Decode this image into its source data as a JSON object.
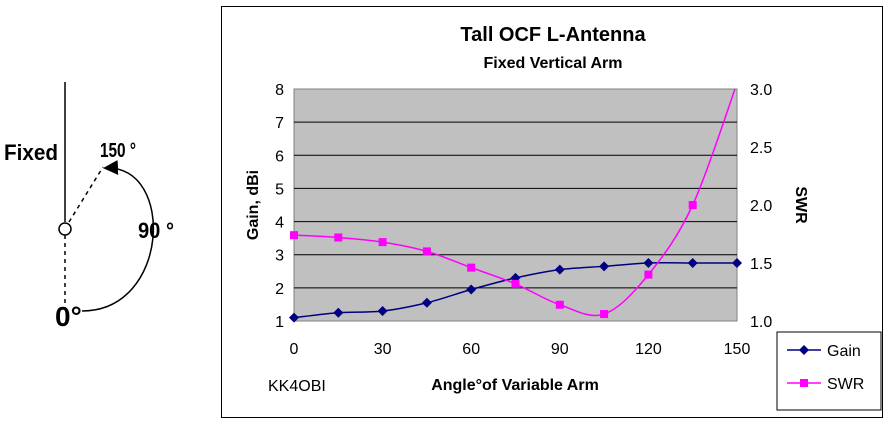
{
  "diagram": {
    "fixed_label": "Fixed",
    "angle_150_label": "150 °",
    "angle_90_label": "90 °",
    "angle_0_label": "0°"
  },
  "chart_data": {
    "type": "line",
    "title": "Tall OCF L-Antenna",
    "subtitle": "Fixed Vertical Arm",
    "xlabel": "Angle°of Variable Arm",
    "ylabel": "Gain, dBi",
    "y2label": "SWR",
    "xlim": [
      0,
      150
    ],
    "ylim": [
      1,
      8
    ],
    "y2lim": [
      1.0,
      3.0
    ],
    "x_ticks": [
      "0",
      "30",
      "60",
      "90",
      "120",
      "150"
    ],
    "y_ticks": [
      "1",
      "2",
      "3",
      "4",
      "5",
      "6",
      "7",
      "8"
    ],
    "y2_ticks": [
      "1.0",
      "1.5",
      "2.0",
      "2.5",
      "3.0"
    ],
    "plot_background": "#c0c0c0",
    "grid": true,
    "legend_position": "bottom-right",
    "credit": "KK4OBI",
    "series": [
      {
        "name": "Gain",
        "axis": "left",
        "color": "#000080",
        "marker": "diamond",
        "x": [
          0,
          15,
          30,
          45,
          60,
          75,
          90,
          105,
          120,
          135,
          150
        ],
        "values": [
          1.1,
          1.25,
          1.3,
          1.55,
          1.95,
          2.3,
          2.55,
          2.65,
          2.75,
          2.75,
          2.75
        ]
      },
      {
        "name": "SWR",
        "axis": "right",
        "color": "#ff00ff",
        "marker": "square",
        "x": [
          0,
          15,
          30,
          45,
          60,
          75,
          90,
          105,
          120,
          135,
          150
        ],
        "values": [
          1.74,
          1.72,
          1.68,
          1.6,
          1.46,
          1.32,
          1.14,
          1.06,
          1.4,
          2.0,
          3.05
        ]
      }
    ]
  }
}
